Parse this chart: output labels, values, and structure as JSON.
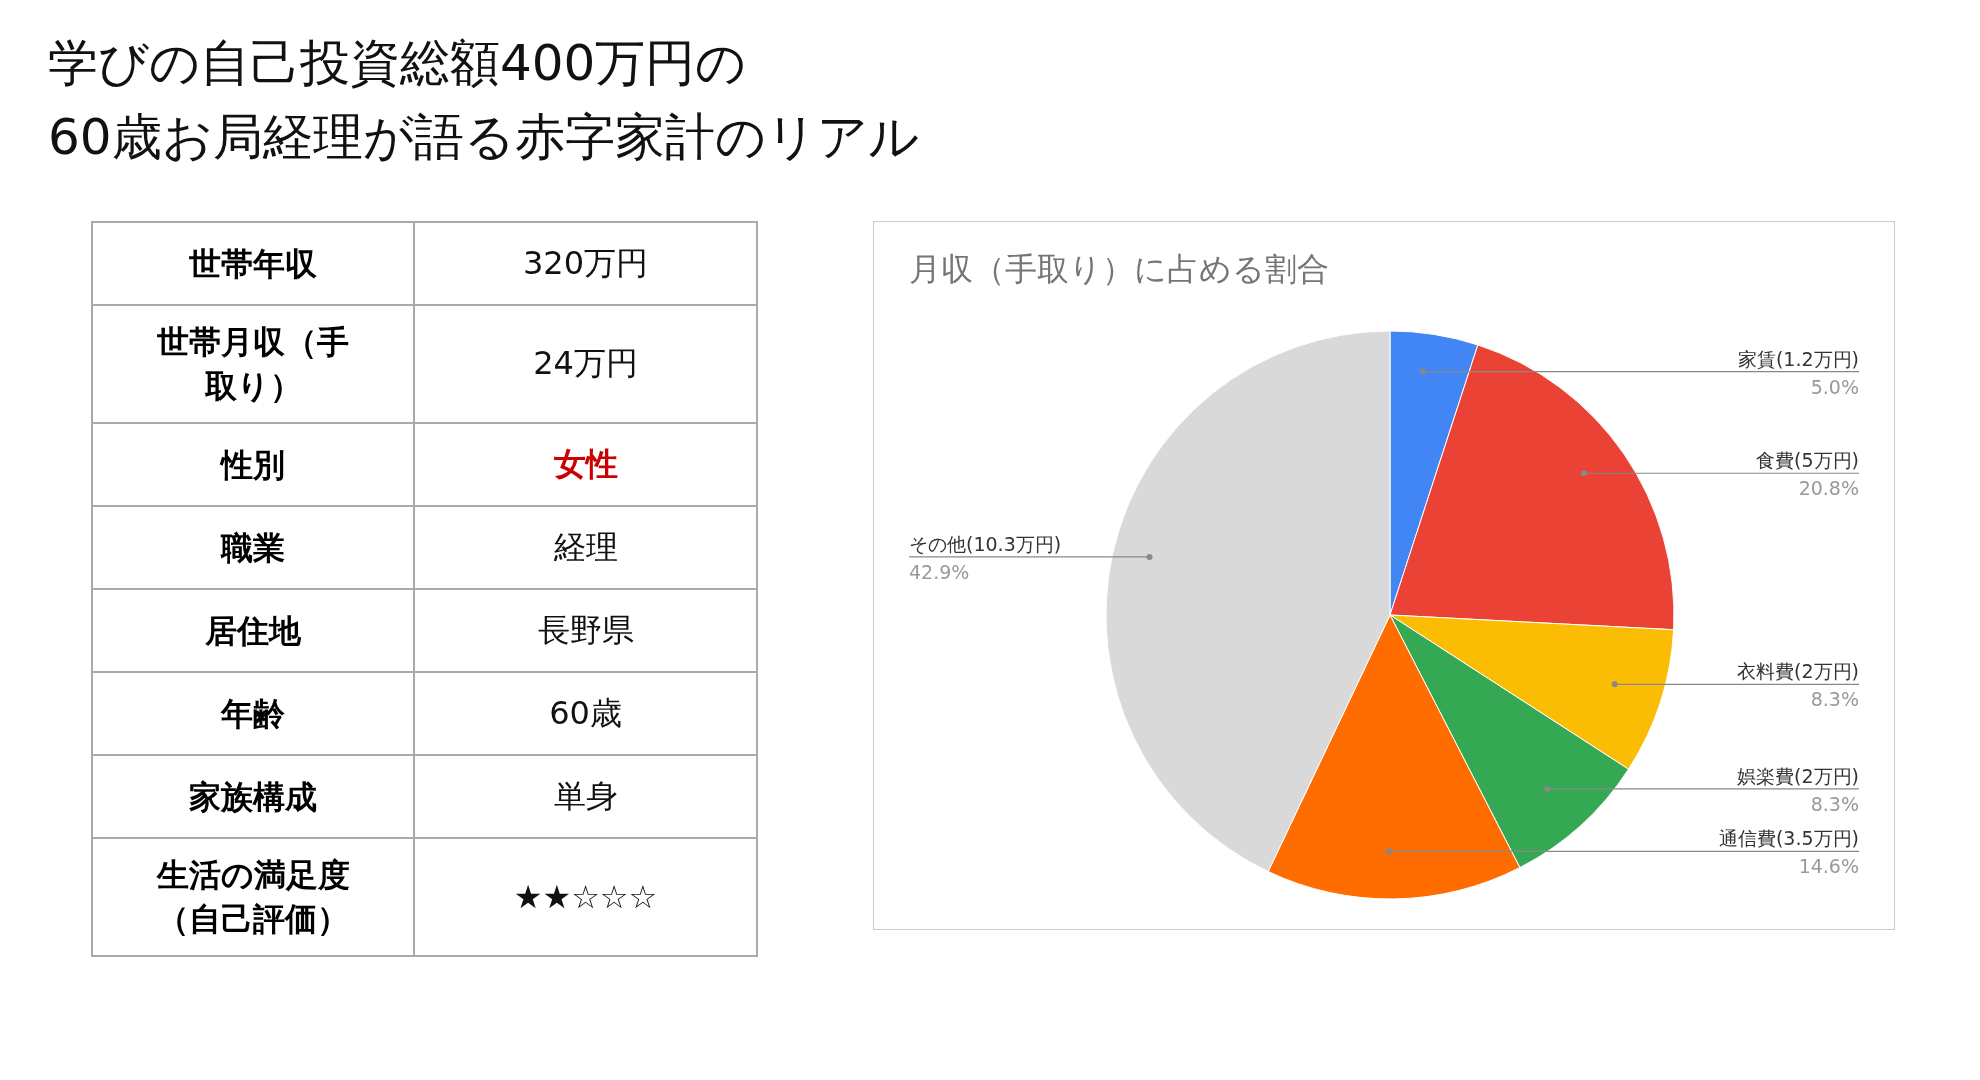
{
  "chart_data": [
    {
      "type": "other",
      "title": "学びの自己投資総額400万円の\n60歳お局経理が語る赤字家計のリアル",
      "annotations": [
        "世帯年収",
        "320万円",
        "世帯月収（手取り）",
        "24万円",
        "性別",
        "女性",
        "職業",
        "経理",
        "居住地",
        "長野県",
        "年齢",
        "60歳",
        "家族構成",
        "単身",
        "生活の満足度（自己評価）",
        "★★☆☆☆"
      ]
    },
    {
      "type": "pie",
      "title": "月収（手取り）に占める割合",
      "categories": [
        "家賃(1.2万円)",
        "食費(5万円)",
        "衣料費(2万円)",
        "娯楽費(2万円)",
        "通信費(3.5万円)",
        "その他(10.3万円)"
      ],
      "values": [
        5.0,
        20.8,
        8.3,
        8.3,
        14.6,
        42.9
      ],
      "value_labels": [
        "5.0%",
        "20.8%",
        "8.3%",
        "8.3%",
        "14.6%",
        "42.9%"
      ],
      "colors": [
        "#4285f4",
        "#ea4335",
        "#fbbc04",
        "#34a853",
        "#ff6d01",
        "#d9d9d9"
      ]
    }
  ]
}
